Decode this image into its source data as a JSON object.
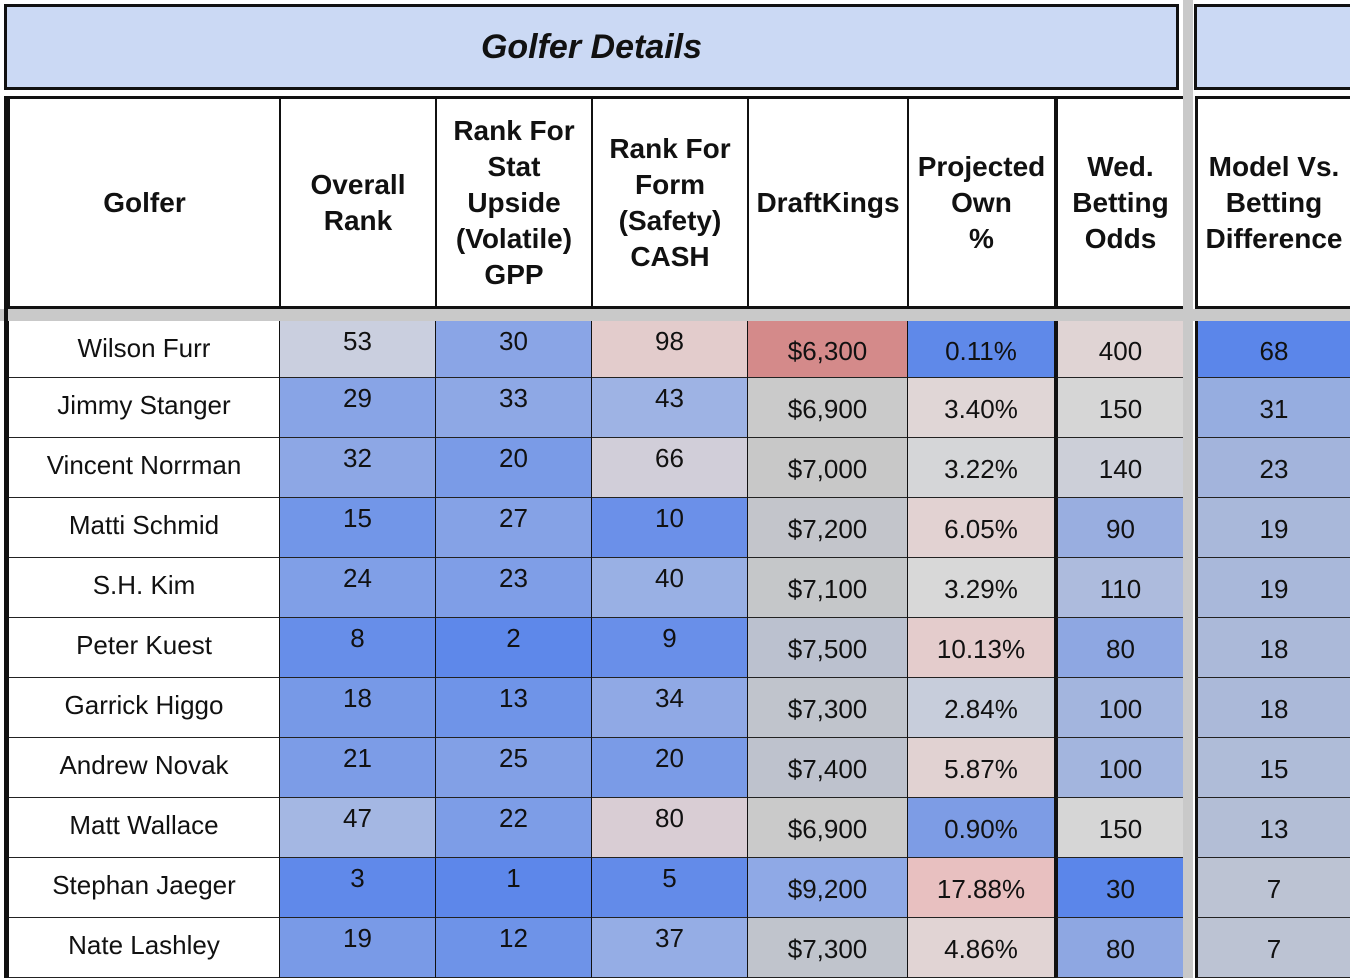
{
  "title": "Golfer Details",
  "headers": [
    "Golfer",
    "Overall\nRank",
    "Rank For\nStat\nUpside\n(Volatile)\nGPP",
    "Rank For\nForm\n(Safety)\nCASH",
    "DraftKings",
    "Projected\nOwn\n%",
    "Wed.\nBetting\nOdds",
    "Model Vs.\nBetting\nDifference"
  ],
  "rows": [
    {
      "golfer": "Wilson Furr",
      "overall": "53",
      "stat": "30",
      "form": "98",
      "dk": "$6,300",
      "own": "0.11%",
      "odds": "400",
      "diff": "68"
    },
    {
      "golfer": "Jimmy Stanger",
      "overall": "29",
      "stat": "33",
      "form": "43",
      "dk": "$6,900",
      "own": "3.40%",
      "odds": "150",
      "diff": "31"
    },
    {
      "golfer": "Vincent Norrman",
      "overall": "32",
      "stat": "20",
      "form": "66",
      "dk": "$7,000",
      "own": "3.22%",
      "odds": "140",
      "diff": "23"
    },
    {
      "golfer": "Matti Schmid",
      "overall": "15",
      "stat": "27",
      "form": "10",
      "dk": "$7,200",
      "own": "6.05%",
      "odds": "90",
      "diff": "19"
    },
    {
      "golfer": "S.H. Kim",
      "overall": "24",
      "stat": "23",
      "form": "40",
      "dk": "$7,100",
      "own": "3.29%",
      "odds": "110",
      "diff": "19"
    },
    {
      "golfer": "Peter Kuest",
      "overall": "8",
      "stat": "2",
      "form": "9",
      "dk": "$7,500",
      "own": "10.13%",
      "odds": "80",
      "diff": "18"
    },
    {
      "golfer": "Garrick Higgo",
      "overall": "18",
      "stat": "13",
      "form": "34",
      "dk": "$7,300",
      "own": "2.84%",
      "odds": "100",
      "diff": "18"
    },
    {
      "golfer": "Andrew Novak",
      "overall": "21",
      "stat": "25",
      "form": "20",
      "dk": "$7,400",
      "own": "5.87%",
      "odds": "100",
      "diff": "15"
    },
    {
      "golfer": "Matt Wallace",
      "overall": "47",
      "stat": "22",
      "form": "80",
      "dk": "$6,900",
      "own": "0.90%",
      "odds": "150",
      "diff": "13"
    },
    {
      "golfer": "Stephan Jaeger",
      "overall": "3",
      "stat": "1",
      "form": "5",
      "dk": "$9,200",
      "own": "17.88%",
      "odds": "30",
      "diff": "7"
    },
    {
      "golfer": "Nate Lashley",
      "overall": "19",
      "stat": "12",
      "form": "37",
      "dk": "$7,300",
      "own": "4.86%",
      "odds": "80",
      "diff": "7"
    }
  ],
  "colors": {
    "header_band": "#cbd9f4",
    "separator": "#c9c9c9",
    "rank_high_blue": "#5b86ea",
    "neutral_grey": "#d6d6d6",
    "pink_high": "#d48a8a"
  }
}
